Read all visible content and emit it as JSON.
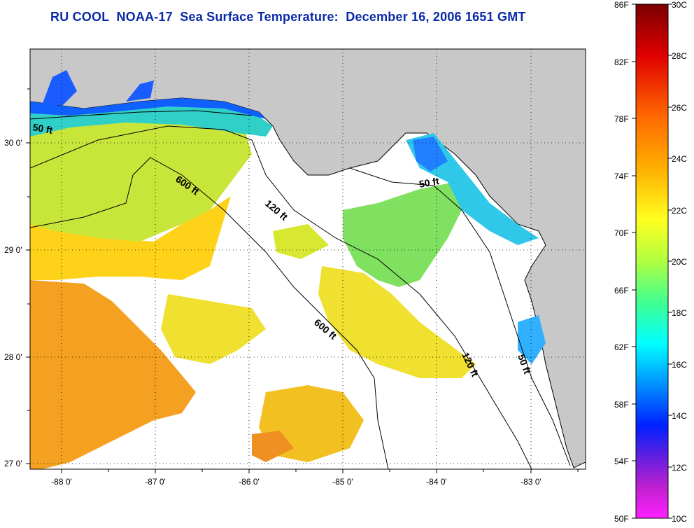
{
  "title": "RU COOL  NOAA-17  Sea Surface Temperature:  December 16, 2006 1651 GMT",
  "map": {
    "lat_labels": [
      "30 0'",
      "29 0'",
      "28 0'",
      "27 0'"
    ],
    "lon_labels": [
      "-88 0'",
      "-87 0'",
      "-86 0'",
      "-85 0'",
      "-84 0'",
      "-83 0'"
    ],
    "contour_labels": [
      "50 ft",
      "600 ft",
      "120 ft",
      "50 ft",
      "600 ft",
      "120 ft",
      "50 ft"
    ],
    "colors": {
      "land": "#c8c8c8",
      "cloud": "#ffffff"
    }
  },
  "colorbar": {
    "fahrenheit_labels": [
      "86F",
      "82F",
      "78F",
      "74F",
      "70F",
      "66F",
      "62F",
      "58F",
      "54F",
      "50F"
    ],
    "celsius_labels": [
      "30C",
      "28C",
      "26C",
      "24C",
      "22C",
      "20C",
      "18C",
      "16C",
      "14C",
      "12C",
      "10C"
    ]
  }
}
